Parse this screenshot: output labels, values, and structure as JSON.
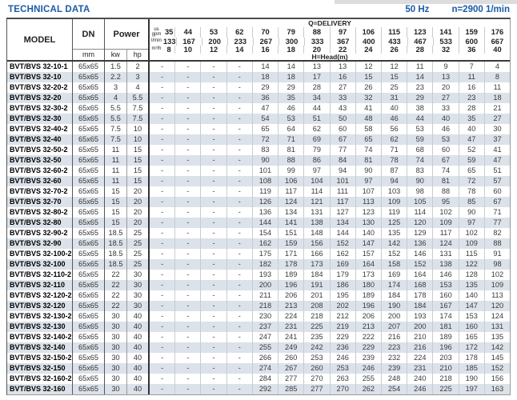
{
  "page": {
    "title": "TECHNICAL DATA",
    "frequency": "50 Hz",
    "speed": "n=2900 1/min"
  },
  "colors": {
    "accent": "#1a5ba7",
    "row_alt": "#dbe2e9"
  },
  "table": {
    "header": {
      "model": "MODEL",
      "dn": "DN",
      "dn_unit": "mm",
      "power": "Power",
      "kw": "kw",
      "hp": "hp",
      "delivery_title": "Q=DELIVERY",
      "head_title": "H=Head(m)",
      "unit_rows": [
        {
          "label": "us gpm",
          "values": [
            "35",
            "44",
            "53",
            "62",
            "70",
            "79",
            "88",
            "97",
            "106",
            "115",
            "123",
            "141",
            "159",
            "176"
          ]
        },
        {
          "label": "l/min",
          "values": [
            "133",
            "167",
            "200",
            "233",
            "267",
            "300",
            "333",
            "367",
            "400",
            "433",
            "467",
            "533",
            "600",
            "667"
          ]
        },
        {
          "label": "m³/h",
          "values": [
            "8",
            "10",
            "12",
            "14",
            "16",
            "18",
            "20",
            "22",
            "24",
            "26",
            "28",
            "32",
            "36",
            "40"
          ]
        }
      ]
    },
    "rows": [
      {
        "model": "BVT/BVS 32-10-1",
        "dn": "65x65",
        "kw": "1.5",
        "hp": "2",
        "head": [
          "-",
          "-",
          "-",
          "-",
          "14",
          "14",
          "13",
          "13",
          "12",
          "12",
          "11",
          "9",
          "7",
          "4"
        ]
      },
      {
        "model": "BVT/BVS 32-10",
        "dn": "65x65",
        "kw": "2.2",
        "hp": "3",
        "head": [
          "-",
          "-",
          "-",
          "-",
          "18",
          "18",
          "17",
          "16",
          "15",
          "15",
          "14",
          "13",
          "11",
          "8"
        ]
      },
      {
        "model": "BVT/BVS 32-20-2",
        "dn": "65x65",
        "kw": "3",
        "hp": "4",
        "head": [
          "-",
          "-",
          "-",
          "-",
          "29",
          "29",
          "28",
          "27",
          "26",
          "25",
          "23",
          "20",
          "16",
          "11"
        ]
      },
      {
        "model": "BVT/BVS 32-20",
        "dn": "65x65",
        "kw": "4",
        "hp": "5.5",
        "head": [
          "-",
          "-",
          "-",
          "-",
          "36",
          "35",
          "34",
          "33",
          "32",
          "31",
          "29",
          "27",
          "23",
          "18"
        ]
      },
      {
        "model": "BVT/BVS 32-30-2",
        "dn": "65x65",
        "kw": "5.5",
        "hp": "7.5",
        "head": [
          "-",
          "-",
          "-",
          "-",
          "47",
          "46",
          "44",
          "43",
          "41",
          "40",
          "38",
          "33",
          "28",
          "21"
        ]
      },
      {
        "model": "BVT/BVS 32-30",
        "dn": "65x65",
        "kw": "5.5",
        "hp": "7.5",
        "head": [
          "-",
          "-",
          "-",
          "-",
          "54",
          "53",
          "51",
          "50",
          "48",
          "46",
          "44",
          "40",
          "35",
          "27"
        ]
      },
      {
        "model": "BVT/BVS 32-40-2",
        "dn": "65x65",
        "kw": "7.5",
        "hp": "10",
        "head": [
          "-",
          "-",
          "-",
          "-",
          "65",
          "64",
          "62",
          "60",
          "58",
          "56",
          "53",
          "46",
          "40",
          "30"
        ]
      },
      {
        "model": "BVT/BVS 32-40",
        "dn": "65x65",
        "kw": "7.5",
        "hp": "10",
        "head": [
          "-",
          "-",
          "-",
          "-",
          "72",
          "71",
          "69",
          "67",
          "65",
          "62",
          "59",
          "53",
          "47",
          "37"
        ]
      },
      {
        "model": "BVT/BVS 32-50-2",
        "dn": "65x65",
        "kw": "11",
        "hp": "15",
        "head": [
          "-",
          "-",
          "-",
          "-",
          "83",
          "81",
          "79",
          "77",
          "74",
          "71",
          "68",
          "60",
          "52",
          "41"
        ]
      },
      {
        "model": "BVT/BVS 32-50",
        "dn": "65x65",
        "kw": "11",
        "hp": "15",
        "head": [
          "-",
          "-",
          "-",
          "-",
          "90",
          "88",
          "86",
          "84",
          "81",
          "78",
          "74",
          "67",
          "59",
          "47"
        ]
      },
      {
        "model": "BVT/BVS 32-60-2",
        "dn": "65x65",
        "kw": "11",
        "hp": "15",
        "head": [
          "-",
          "-",
          "-",
          "-",
          "101",
          "99",
          "97",
          "94",
          "90",
          "87",
          "83",
          "74",
          "65",
          "51"
        ]
      },
      {
        "model": "BVT/BVS 32-60",
        "dn": "65x65",
        "kw": "11",
        "hp": "15",
        "head": [
          "-",
          "-",
          "-",
          "-",
          "108",
          "106",
          "104",
          "101",
          "97",
          "94",
          "90",
          "81",
          "72",
          "57"
        ]
      },
      {
        "model": "BVT/BVS 32-70-2",
        "dn": "65x65",
        "kw": "15",
        "hp": "20",
        "head": [
          "-",
          "-",
          "-",
          "-",
          "119",
          "117",
          "114",
          "111",
          "107",
          "103",
          "98",
          "88",
          "78",
          "60"
        ]
      },
      {
        "model": "BVT/BVS 32-70",
        "dn": "65x65",
        "kw": "15",
        "hp": "20",
        "head": [
          "-",
          "-",
          "-",
          "-",
          "126",
          "124",
          "121",
          "117",
          "113",
          "109",
          "105",
          "95",
          "85",
          "67"
        ]
      },
      {
        "model": "BVT/BVS 32-80-2",
        "dn": "65x65",
        "kw": "15",
        "hp": "20",
        "head": [
          "-",
          "-",
          "-",
          "-",
          "136",
          "134",
          "131",
          "127",
          "123",
          "119",
          "114",
          "102",
          "90",
          "71"
        ]
      },
      {
        "model": "BVT/BVS 32-80",
        "dn": "65x65",
        "kw": "15",
        "hp": "20",
        "head": [
          "-",
          "-",
          "-",
          "-",
          "144",
          "141",
          "138",
          "134",
          "130",
          "125",
          "120",
          "109",
          "97",
          "77"
        ]
      },
      {
        "model": "BVT/BVS 32-90-2",
        "dn": "65x65",
        "kw": "18.5",
        "hp": "25",
        "head": [
          "-",
          "-",
          "-",
          "-",
          "154",
          "151",
          "148",
          "144",
          "140",
          "135",
          "129",
          "117",
          "102",
          "82"
        ]
      },
      {
        "model": "BVT/BVS 32-90",
        "dn": "65x65",
        "kw": "18.5",
        "hp": "25",
        "head": [
          "-",
          "-",
          "-",
          "-",
          "162",
          "159",
          "156",
          "152",
          "147",
          "142",
          "136",
          "124",
          "109",
          "88"
        ]
      },
      {
        "model": "BVT/BVS 32-100-2",
        "dn": "65x65",
        "kw": "18.5",
        "hp": "25",
        "head": [
          "-",
          "-",
          "-",
          "-",
          "175",
          "171",
          "166",
          "162",
          "157",
          "152",
          "146",
          "131",
          "115",
          "91"
        ]
      },
      {
        "model": "BVT/BVS 32-100",
        "dn": "65x65",
        "kw": "18.5",
        "hp": "25",
        "head": [
          "-",
          "-",
          "-",
          "-",
          "182",
          "178",
          "173",
          "169",
          "164",
          "158",
          "152",
          "138",
          "122",
          "98"
        ]
      },
      {
        "model": "BVT/BVS 32-110-2",
        "dn": "65x65",
        "kw": "22",
        "hp": "30",
        "head": [
          "-",
          "-",
          "-",
          "-",
          "193",
          "189",
          "184",
          "179",
          "173",
          "169",
          "164",
          "146",
          "128",
          "102"
        ]
      },
      {
        "model": "BVT/BVS 32-110",
        "dn": "65x65",
        "kw": "22",
        "hp": "30",
        "head": [
          "-",
          "-",
          "-",
          "-",
          "200",
          "196",
          "191",
          "186",
          "180",
          "174",
          "168",
          "153",
          "135",
          "109"
        ]
      },
      {
        "model": "BVT/BVS 32-120-2",
        "dn": "65x65",
        "kw": "22",
        "hp": "30",
        "head": [
          "-",
          "-",
          "-",
          "-",
          "211",
          "206",
          "201",
          "195",
          "189",
          "184",
          "178",
          "160",
          "140",
          "113"
        ]
      },
      {
        "model": "BVT/BVS 32-120",
        "dn": "65x65",
        "kw": "22",
        "hp": "30",
        "head": [
          "-",
          "-",
          "-",
          "-",
          "218",
          "213",
          "208",
          "202",
          "196",
          "190",
          "184",
          "167",
          "147",
          "120"
        ]
      },
      {
        "model": "BVT/BVS 32-130-2",
        "dn": "65x65",
        "kw": "30",
        "hp": "40",
        "head": [
          "-",
          "-",
          "-",
          "-",
          "230",
          "224",
          "218",
          "212",
          "206",
          "200",
          "193",
          "174",
          "153",
          "124"
        ]
      },
      {
        "model": "BVT/BVS 32-130",
        "dn": "65x65",
        "kw": "30",
        "hp": "40",
        "head": [
          "-",
          "-",
          "-",
          "-",
          "237",
          "231",
          "225",
          "219",
          "213",
          "207",
          "200",
          "181",
          "160",
          "131"
        ]
      },
      {
        "model": "BVT/BVS 32-140-2",
        "dn": "65x65",
        "kw": "30",
        "hp": "40",
        "head": [
          "-",
          "-",
          "-",
          "-",
          "247",
          "241",
          "235",
          "229",
          "222",
          "216",
          "210",
          "189",
          "165",
          "135"
        ]
      },
      {
        "model": "BVT/BVS 32-140",
        "dn": "65x65",
        "kw": "30",
        "hp": "40",
        "head": [
          "-",
          "-",
          "-",
          "-",
          "255",
          "249",
          "242",
          "236",
          "229",
          "223",
          "216",
          "196",
          "172",
          "142"
        ]
      },
      {
        "model": "BVT/BVS 32-150-2",
        "dn": "65x65",
        "kw": "30",
        "hp": "40",
        "head": [
          "-",
          "-",
          "-",
          "-",
          "266",
          "260",
          "253",
          "246",
          "239",
          "232",
          "224",
          "203",
          "178",
          "145"
        ]
      },
      {
        "model": "BVT/BVS 32-150",
        "dn": "65x65",
        "kw": "30",
        "hp": "40",
        "head": [
          "-",
          "-",
          "-",
          "-",
          "274",
          "267",
          "260",
          "253",
          "246",
          "239",
          "231",
          "210",
          "185",
          "152"
        ]
      },
      {
        "model": "BVT/BVS 32-160-2",
        "dn": "65x65",
        "kw": "30",
        "hp": "40",
        "head": [
          "-",
          "-",
          "-",
          "-",
          "284",
          "277",
          "270",
          "263",
          "255",
          "248",
          "240",
          "218",
          "190",
          "156"
        ]
      },
      {
        "model": "BVT/BVS 32-160",
        "dn": "65x65",
        "kw": "30",
        "hp": "40",
        "head": [
          "-",
          "-",
          "-",
          "-",
          "292",
          "285",
          "277",
          "270",
          "262",
          "254",
          "246",
          "225",
          "197",
          "163"
        ]
      }
    ]
  }
}
